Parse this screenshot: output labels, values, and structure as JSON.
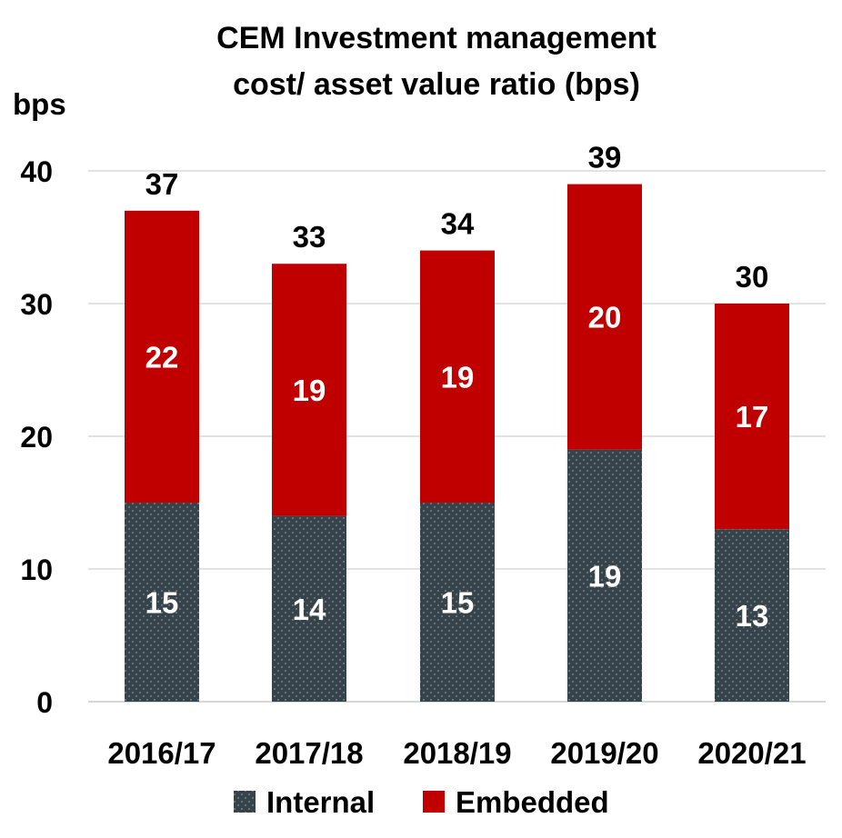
{
  "chart_data": {
    "type": "bar",
    "stacked": true,
    "title": [
      "CEM Investment management",
      "cost/ asset value ratio (bps)"
    ],
    "ylabel": "bps",
    "ylim": [
      0,
      40
    ],
    "yticks": [
      "0",
      "10",
      "20",
      "30",
      "40"
    ],
    "categories": [
      "2016/17",
      "2017/18",
      "2018/19",
      "2019/20",
      "2020/21"
    ],
    "series": [
      {
        "name": "Internal",
        "values": [
          15,
          14,
          15,
          19,
          13
        ],
        "color": "#36434a",
        "pattern": "dotted",
        "label_color": "#ffffff"
      },
      {
        "name": "Embedded",
        "values": [
          22,
          19,
          19,
          20,
          17
        ],
        "color": "#c00000",
        "label_color": "#ffffff"
      }
    ],
    "totals": [
      37,
      33,
      34,
      39,
      30
    ],
    "grid": true,
    "legend": "bottom"
  }
}
